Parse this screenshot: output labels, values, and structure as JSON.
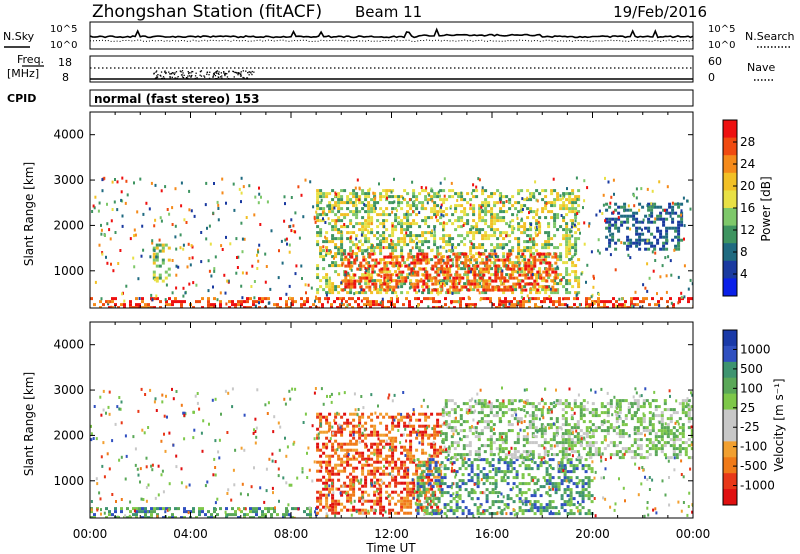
{
  "header": {
    "station": "Zhongshan Station (fitACF)",
    "beam": "Beam 11",
    "date": "19/Feb/2016"
  },
  "status_panels": {
    "nsky_label": "N.Sky",
    "nsky_ticks": [
      "10^5",
      "10^0"
    ],
    "nsearch_label": "N.Search",
    "freq_label_1": "Freq.",
    "freq_label_2": "[MHz]",
    "freq_ticks": [
      "18",
      "8"
    ],
    "nave_label": "Nave",
    "nave_ticks": [
      "60",
      "0"
    ],
    "cpid_label": "CPID",
    "cpid_value": "normal (fast stereo) 153"
  },
  "chart_data": [
    {
      "type": "heatmap",
      "title": "",
      "xlabel": "",
      "ylabel": "Slant Range [km]",
      "colorbar_label": "Power [dB]",
      "x_ticks": [
        "00:00",
        "04:00",
        "08:00",
        "12:00",
        "16:00",
        "20:00",
        "00:00"
      ],
      "xlim_hours": [
        0,
        24
      ],
      "ylim_km": [
        180,
        4500
      ],
      "y_ticks": [
        1000,
        2000,
        3000,
        4000
      ],
      "colorbar_ticks": [
        "28",
        "24",
        "20",
        "16",
        "12",
        "8",
        "4"
      ],
      "colorbar_colors": [
        "#ee1010",
        "#f04a10",
        "#f58a1a",
        "#f2c025",
        "#e8e045",
        "#7ec86a",
        "#3e9460",
        "#1f6a80",
        "#1a3aa0",
        "#0a20e8"
      ],
      "features": [
        {
          "t_start": 0.0,
          "t_end": 24.0,
          "r_min": 180,
          "r_max": 420,
          "level": "high"
        },
        {
          "t_start": 9.0,
          "t_end": 19.5,
          "r_min": 500,
          "r_max": 2800,
          "level": "medium"
        },
        {
          "t_start": 10.0,
          "t_end": 18.5,
          "r_min": 600,
          "r_max": 1400,
          "level": "high"
        },
        {
          "t_start": 2.5,
          "t_end": 3.2,
          "r_min": 800,
          "r_max": 1600,
          "level": "medium"
        },
        {
          "t_start": 20.5,
          "t_end": 23.5,
          "r_min": 1500,
          "r_max": 2500,
          "level": "low"
        }
      ]
    },
    {
      "type": "heatmap",
      "title": "",
      "xlabel": "Time UT",
      "ylabel": "Slant Range [km]",
      "colorbar_label": "Velocity [m s⁻¹]",
      "x_ticks": [
        "00:00",
        "04:00",
        "08:00",
        "12:00",
        "16:00",
        "20:00",
        "00:00"
      ],
      "xlim_hours": [
        0,
        24
      ],
      "ylim_km": [
        180,
        4500
      ],
      "y_ticks": [
        1000,
        2000,
        3000,
        4000
      ],
      "colorbar_ticks": [
        "1000",
        "500",
        "100",
        "25",
        "-25",
        "-100",
        "-500",
        "-1000"
      ],
      "colorbar_colors": [
        "#1a3aa8",
        "#3050c0",
        "#3e9470",
        "#5aa858",
        "#7ec84a",
        "#c8c8c8",
        "#c8c8c8",
        "#f2a030",
        "#f07a18",
        "#e83818",
        "#e01010"
      ],
      "features": [
        {
          "t_start": 0.0,
          "t_end": 9.0,
          "r_min": 180,
          "r_max": 420,
          "level": "positive"
        },
        {
          "t_start": 9.0,
          "t_end": 14.0,
          "r_min": 300,
          "r_max": 2500,
          "level": "negative"
        },
        {
          "t_start": 13.0,
          "t_end": 20.0,
          "r_min": 300,
          "r_max": 1500,
          "level": "positive"
        },
        {
          "t_start": 14.0,
          "t_end": 24.0,
          "r_min": 1500,
          "r_max": 2800,
          "level": "near-zero"
        }
      ]
    }
  ]
}
